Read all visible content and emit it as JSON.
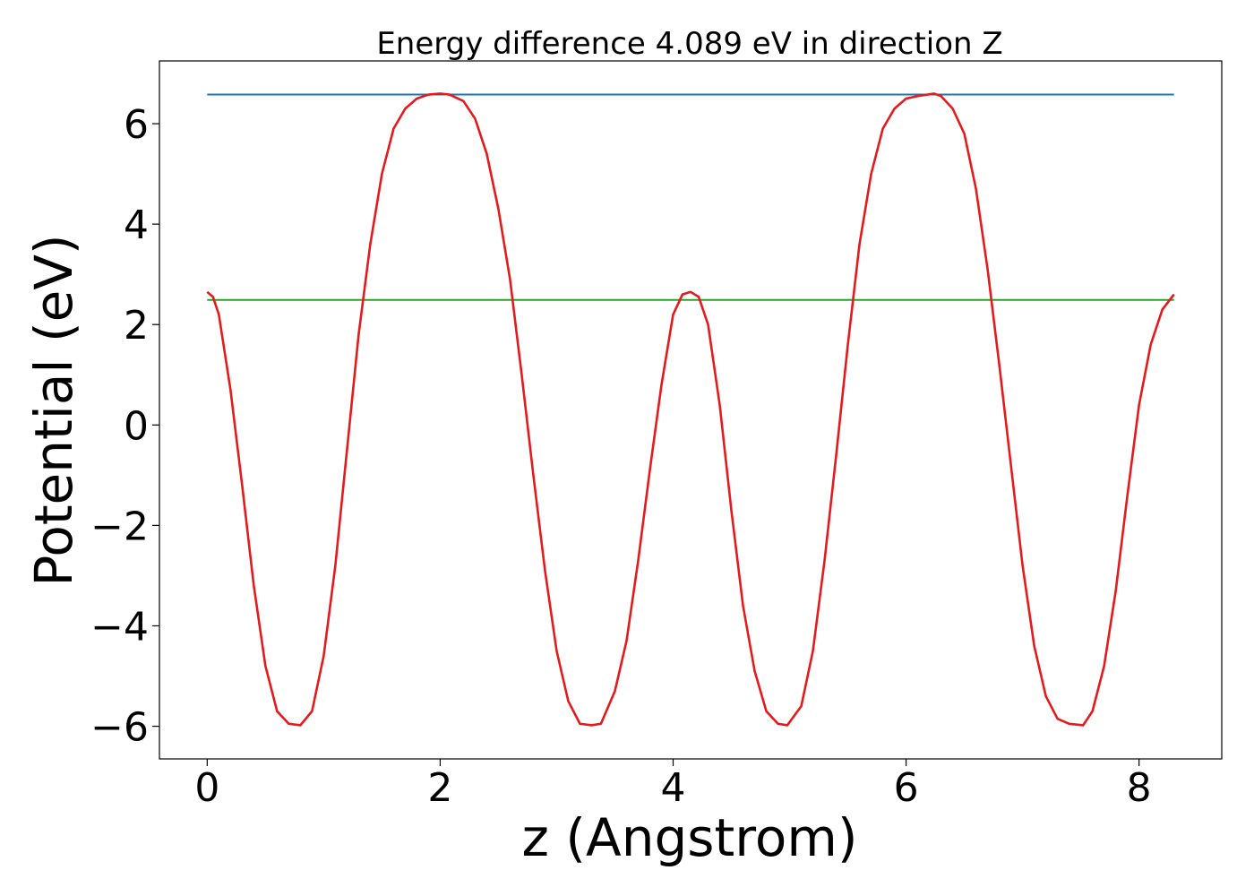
{
  "chart_data": {
    "type": "line",
    "title": "Energy difference 4.089 eV in direction Z",
    "xlabel": "z (Angstrom)",
    "ylabel": "Potential (eV)",
    "xlim": [
      -0.41,
      8.71
    ],
    "ylim": [
      -6.65,
      7.25
    ],
    "xticks": [
      0,
      2,
      4,
      6,
      8
    ],
    "yticks": [
      -6,
      -4,
      -2,
      0,
      2,
      4,
      6
    ],
    "xtick_labels": [
      "0",
      "2",
      "4",
      "6",
      "8"
    ],
    "ytick_labels": [
      "−6",
      "−4",
      "−2",
      "0",
      "2",
      "4",
      "6"
    ],
    "grid": false,
    "series": [
      {
        "color": "#1f77b4",
        "x": [
          0,
          8.3
        ],
        "y": [
          6.58,
          6.58
        ]
      },
      {
        "color": "#2ca02c",
        "x": [
          0,
          8.3
        ],
        "y": [
          2.49,
          2.49
        ]
      },
      {
        "color": "#e41a1c",
        "x": [
          0,
          0.05,
          0.1,
          0.2,
          0.3,
          0.4,
          0.5,
          0.6,
          0.7,
          0.8,
          0.9,
          1.0,
          1.1,
          1.2,
          1.3,
          1.4,
          1.5,
          1.6,
          1.7,
          1.8,
          1.9,
          2.0,
          2.08,
          2.2,
          2.3,
          2.4,
          2.5,
          2.6,
          2.7,
          2.8,
          2.9,
          3.0,
          3.1,
          3.2,
          3.3,
          3.38,
          3.5,
          3.6,
          3.7,
          3.8,
          3.9,
          4.0,
          4.08,
          4.15,
          4.22,
          4.3,
          4.4,
          4.5,
          4.6,
          4.7,
          4.8,
          4.9,
          4.98,
          5.1,
          5.2,
          5.3,
          5.4,
          5.5,
          5.6,
          5.7,
          5.8,
          5.9,
          6.0,
          6.1,
          6.24,
          6.3,
          6.4,
          6.5,
          6.6,
          6.7,
          6.8,
          6.9,
          7.0,
          7.1,
          7.2,
          7.3,
          7.4,
          7.52,
          7.6,
          7.7,
          7.8,
          7.9,
          8.0,
          8.1,
          8.2,
          8.3
        ],
        "y": [
          2.65,
          2.55,
          2.2,
          0.7,
          -1.2,
          -3.2,
          -4.8,
          -5.7,
          -5.95,
          -5.98,
          -5.7,
          -4.6,
          -2.8,
          -0.5,
          1.8,
          3.6,
          5.0,
          5.9,
          6.3,
          6.5,
          6.58,
          6.6,
          6.58,
          6.45,
          6.1,
          5.4,
          4.3,
          2.9,
          1.0,
          -1.0,
          -2.9,
          -4.5,
          -5.5,
          -5.95,
          -5.98,
          -5.95,
          -5.3,
          -4.3,
          -2.7,
          -0.9,
          0.8,
          2.2,
          2.6,
          2.65,
          2.55,
          2.0,
          0.4,
          -1.7,
          -3.6,
          -4.9,
          -5.7,
          -5.95,
          -5.98,
          -5.6,
          -4.5,
          -2.7,
          -0.6,
          1.6,
          3.6,
          5.0,
          5.9,
          6.3,
          6.5,
          6.55,
          6.6,
          6.55,
          6.3,
          5.8,
          4.7,
          3.1,
          1.2,
          -0.8,
          -2.8,
          -4.4,
          -5.4,
          -5.85,
          -5.95,
          -5.98,
          -5.7,
          -4.8,
          -3.3,
          -1.4,
          0.4,
          1.6,
          2.3,
          2.6
        ]
      }
    ]
  }
}
